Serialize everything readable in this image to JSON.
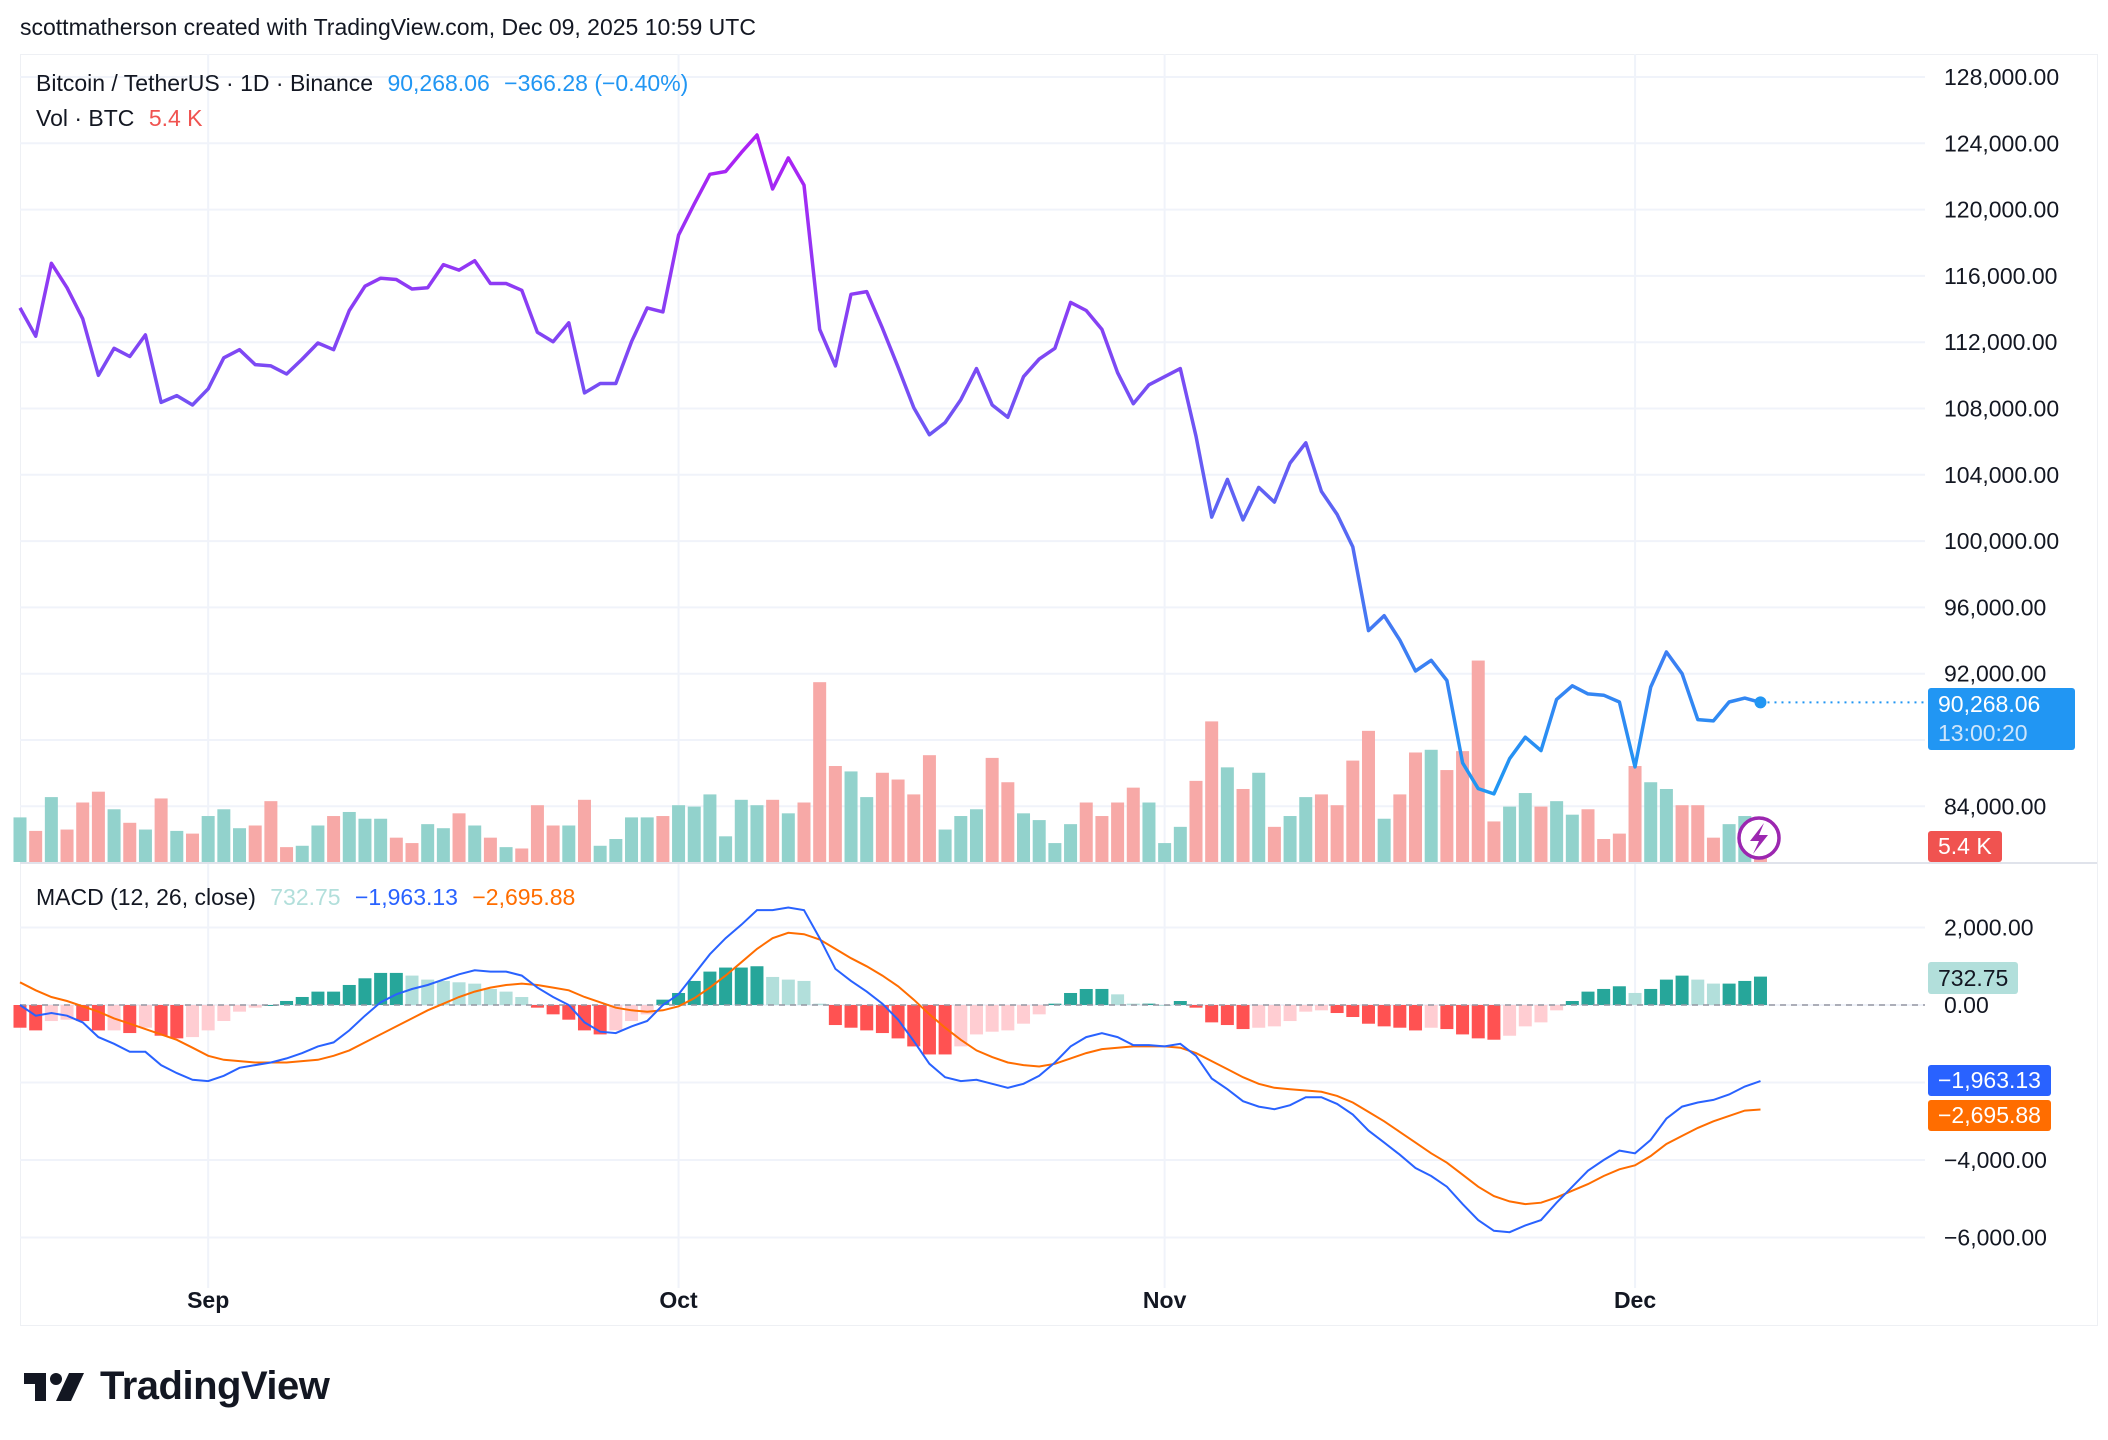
{
  "credit": "scottmatherson created with TradingView.com, Dec 09, 2025 10:59 UTC",
  "legend": {
    "symbol": "Bitcoin / TetherUS · 1D · Binance",
    "price": "90,268.06",
    "change": "−366.28 (−0.40%)",
    "vol_label": "Vol · BTC",
    "vol_value": "5.4 K",
    "macd_label": "MACD (12, 26, close)",
    "macd_hist": "732.75",
    "macd_line": "−1,963.13",
    "macd_signal": "−2,695.88"
  },
  "tags": {
    "price": "90,268.06",
    "countdown": "13:00:20",
    "volume": "5.4 K",
    "hist": "732.75",
    "macd": "−1,963.13",
    "signal": "−2,695.88"
  },
  "logo": "TradingView",
  "icons": {
    "alert": "lightning-icon",
    "logo": "tradingview-logo-icon"
  },
  "colors": {
    "line_high": "#b01ef4",
    "line_low": "#2196f3",
    "vol_up": "#92d2cc",
    "vol_down": "#f7a9a7",
    "hist_up_strong": "#26a69a",
    "hist_up_weak": "#b2dfdb",
    "hist_down_strong": "#ff5252",
    "hist_down_weak": "#ffcdd2",
    "macd": "#2962ff",
    "signal": "#ff6d00",
    "price_tag": "#2196f3",
    "vol_tag": "#f05350"
  },
  "chart_data": [
    {
      "type": "line",
      "title": "Bitcoin / TetherUS · 1D · Binance",
      "x_start": "2025-08-20",
      "x_end": "2025-12-09",
      "x_interval": "1D",
      "x_ticks": [
        "Sep",
        "Oct",
        "Nov",
        "Dec"
      ],
      "y_ticks": [
        "128,000.00",
        "124,000.00",
        "120,000.00",
        "116,000.00",
        "112,000.00",
        "108,000.00",
        "104,000.00",
        "100,000.00",
        "96,000.00",
        "92,000.00",
        "84,000.00"
      ],
      "ylim": [
        80500,
        129000
      ],
      "grid": true,
      "close": [
        114070,
        112360,
        116760,
        115290,
        113420,
        110000,
        111630,
        111140,
        112440,
        108370,
        108780,
        108210,
        109190,
        111060,
        111550,
        110650,
        110570,
        110080,
        110980,
        111950,
        111550,
        113910,
        115380,
        115860,
        115780,
        115210,
        115290,
        116680,
        116350,
        116920,
        115540,
        115540,
        115130,
        112600,
        112030,
        113170,
        108940,
        109510,
        109510,
        112030,
        114070,
        113830,
        118470,
        120340,
        122130,
        122300,
        123440,
        124500,
        121240,
        123120,
        121480,
        112770,
        110570,
        114890,
        115050,
        112850,
        110490,
        108040,
        106420,
        107150,
        108530,
        110410,
        108210,
        107470,
        109920,
        110980,
        111630,
        114400,
        113910,
        112770,
        110160,
        108290,
        109430,
        109920,
        110410,
        106330,
        101450,
        103720,
        101280,
        103240,
        102350,
        104710,
        105930,
        103000,
        101610,
        99650,
        94600,
        95500,
        94030,
        92160,
        92810,
        91590,
        86620,
        85070,
        84750,
        86870,
        88170,
        87360,
        90450,
        91270,
        90780,
        90700,
        90290,
        86380,
        91190,
        93310,
        92000,
        89230,
        89150,
        90290,
        90530,
        90268.06
      ],
      "volume_unit": "K BTC",
      "volume": [
        13.2,
        9.2,
        19.2,
        9.6,
        17.6,
        20.8,
        15.6,
        11.6,
        9.6,
        18.8,
        9.2,
        8.4,
        13.6,
        15.6,
        10,
        10.8,
        18,
        4.4,
        4.8,
        10.8,
        13.6,
        14.8,
        12.8,
        12.8,
        7.2,
        5.6,
        11.2,
        10,
        14.4,
        10.8,
        7.2,
        4.4,
        4,
        16.8,
        10.8,
        10.8,
        18.4,
        4.8,
        6.8,
        13.2,
        13.2,
        13.6,
        16.8,
        16.4,
        20,
        7.6,
        18.4,
        16.8,
        18.4,
        14.4,
        17.6,
        53.2,
        28.4,
        26.8,
        19.2,
        26.4,
        24.4,
        20,
        31.6,
        9.6,
        13.6,
        15.6,
        30.8,
        23.6,
        14.4,
        12.4,
        5.6,
        11.2,
        17.6,
        13.6,
        17.6,
        22,
        17.6,
        5.6,
        10.4,
        24,
        41.6,
        28,
        21.6,
        26.4,
        10.4,
        13.6,
        19.2,
        20,
        16.8,
        30,
        38.8,
        12.8,
        20,
        32.4,
        33.2,
        27.2,
        32.8,
        59.6,
        12,
        16.4,
        20.4,
        16.4,
        18,
        14,
        15.6,
        6.8,
        8.4,
        28.4,
        23.6,
        21.6,
        16.8,
        16.8,
        7.2,
        11.2,
        13.6,
        5.4
      ]
    },
    {
      "type": "line",
      "title": "MACD (12, 26, close)",
      "y_ticks": [
        "2,000.00",
        "0.00",
        "−4,000.00",
        "−6,000.00"
      ],
      "ylim": [
        -7600,
        3700
      ],
      "macd": [
        0,
        -276,
        -207,
        -276,
        -448,
        -828,
        -1000,
        -1207,
        -1207,
        -1552,
        -1758,
        -1931,
        -1965,
        -1827,
        -1620,
        -1552,
        -1483,
        -1379,
        -1241,
        -1069,
        -965,
        -655,
        -276,
        69,
        276,
        414,
        517,
        655,
        793,
        896,
        862,
        862,
        758,
        448,
        207,
        0,
        -448,
        -690,
        -724,
        -552,
        -414,
        0,
        276,
        793,
        1310,
        1724,
        2069,
        2448,
        2448,
        2517,
        2448,
        1724,
        931,
        621,
        345,
        34,
        -379,
        -931,
        -1517,
        -1862,
        -1965,
        -1931,
        -2034,
        -2138,
        -2034,
        -1827,
        -1483,
        -1069,
        -828,
        -724,
        -828,
        -1034,
        -1034,
        -1069,
        -1000,
        -1310,
        -1896,
        -2172,
        -2483,
        -2621,
        -2689,
        -2586,
        -2379,
        -2379,
        -2552,
        -2827,
        -3241,
        -3551,
        -3862,
        -4207,
        -4414,
        -4690,
        -5138,
        -5551,
        -5827,
        -5862,
        -5689,
        -5551,
        -5103,
        -4690,
        -4276,
        -4000,
        -3758,
        -3827,
        -3482,
        -2931,
        -2621,
        -2517,
        -2448,
        -2310,
        -2103,
        -1963.13
      ],
      "signal": [
        586,
        379,
        207,
        103,
        -34,
        -172,
        -345,
        -483,
        -621,
        -759,
        -897,
        -1103,
        -1310,
        -1414,
        -1448,
        -1483,
        -1483,
        -1483,
        -1448,
        -1414,
        -1310,
        -1172,
        -965,
        -759,
        -552,
        -345,
        -138,
        34,
        207,
        345,
        448,
        517,
        552,
        517,
        448,
        379,
        207,
        69,
        -69,
        -138,
        -172,
        -138,
        -34,
        172,
        448,
        758,
        1103,
        1448,
        1724,
        1862,
        1827,
        1690,
        1448,
        1207,
        1000,
        758,
        483,
        138,
        -241,
        -586,
        -897,
        -1172,
        -1345,
        -1483,
        -1552,
        -1586,
        -1517,
        -1379,
        -1241,
        -1138,
        -1103,
        -1069,
        -1069,
        -1069,
        -1103,
        -1241,
        -1448,
        -1655,
        -1862,
        -2034,
        -2138,
        -2172,
        -2207,
        -2241,
        -2345,
        -2517,
        -2758,
        -3000,
        -3276,
        -3551,
        -3827,
        -4069,
        -4379,
        -4690,
        -4931,
        -5069,
        -5138,
        -5103,
        -4965,
        -4793,
        -4621,
        -4414,
        -4241,
        -4138,
        -3896,
        -3586,
        -3379,
        -3172,
        -3000,
        -2862,
        -2724,
        -2695.88
      ]
    }
  ]
}
